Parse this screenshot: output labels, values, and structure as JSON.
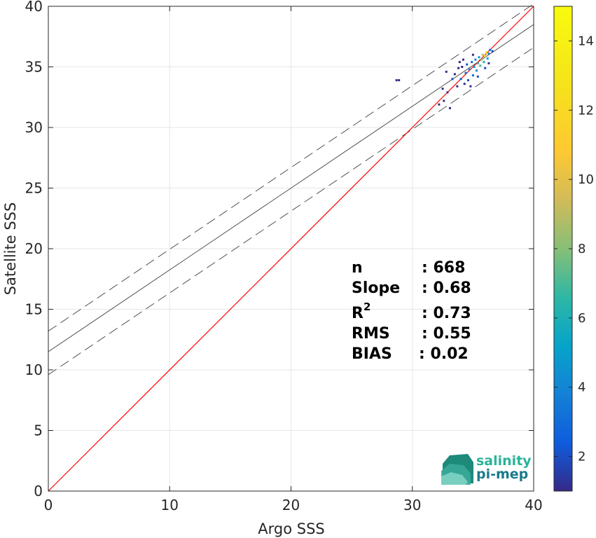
{
  "chart_data": {
    "type": "scatter",
    "xlabel": "Argo SSS",
    "ylabel": "Satellite SSS",
    "xlim": [
      0,
      40
    ],
    "ylim": [
      0,
      40
    ],
    "xticks": [
      "0",
      "10",
      "20",
      "30",
      "40"
    ],
    "yticks": [
      "0",
      "5",
      "10",
      "15",
      "20",
      "25",
      "30",
      "35",
      "40"
    ],
    "grid": true,
    "one_to_one_line": {
      "x": [
        0,
        40
      ],
      "y": [
        0,
        40
      ],
      "color": "#ff0000"
    },
    "regression_line": {
      "x": [
        0,
        40
      ],
      "y": [
        11.5,
        38.5
      ],
      "color": "#404040"
    },
    "upper_bound": {
      "x": [
        0,
        40
      ],
      "y": [
        13.2,
        40.2
      ],
      "style": "dashed"
    },
    "lower_bound": {
      "x": [
        0,
        40
      ],
      "y": [
        9.6,
        36.6
      ],
      "style": "dashed"
    },
    "density_points": [
      {
        "x": 28.7,
        "y": 33.9,
        "v": 1
      },
      {
        "x": 28.9,
        "y": 33.9,
        "v": 1
      },
      {
        "x": 32.2,
        "y": 31.9,
        "v": 1
      },
      {
        "x": 32.5,
        "y": 33.2,
        "v": 1
      },
      {
        "x": 32.9,
        "y": 32.9,
        "v": 1
      },
      {
        "x": 32.8,
        "y": 34.6,
        "v": 1
      },
      {
        "x": 33.1,
        "y": 31.6,
        "v": 1
      },
      {
        "x": 32.6,
        "y": 32.2,
        "v": 1
      },
      {
        "x": 33.3,
        "y": 34.0,
        "v": 2
      },
      {
        "x": 33.5,
        "y": 34.4,
        "v": 1
      },
      {
        "x": 33.8,
        "y": 34.9,
        "v": 1
      },
      {
        "x": 33.7,
        "y": 33.4,
        "v": 1
      },
      {
        "x": 34.0,
        "y": 34.0,
        "v": 2
      },
      {
        "x": 34.1,
        "y": 35.0,
        "v": 1
      },
      {
        "x": 34.3,
        "y": 33.6,
        "v": 1
      },
      {
        "x": 34.4,
        "y": 34.5,
        "v": 3
      },
      {
        "x": 34.5,
        "y": 35.2,
        "v": 2
      },
      {
        "x": 34.6,
        "y": 33.9,
        "v": 2
      },
      {
        "x": 34.7,
        "y": 34.8,
        "v": 4
      },
      {
        "x": 34.9,
        "y": 35.4,
        "v": 3
      },
      {
        "x": 35.0,
        "y": 34.3,
        "v": 3
      },
      {
        "x": 35.1,
        "y": 35.0,
        "v": 5
      },
      {
        "x": 35.2,
        "y": 35.6,
        "v": 4
      },
      {
        "x": 35.3,
        "y": 34.7,
        "v": 4
      },
      {
        "x": 35.4,
        "y": 35.3,
        "v": 6
      },
      {
        "x": 35.5,
        "y": 35.8,
        "v": 5
      },
      {
        "x": 35.6,
        "y": 35.1,
        "v": 7
      },
      {
        "x": 35.7,
        "y": 35.6,
        "v": 8
      },
      {
        "x": 35.8,
        "y": 36.0,
        "v": 9
      },
      {
        "x": 35.9,
        "y": 35.4,
        "v": 6
      },
      {
        "x": 36.0,
        "y": 35.9,
        "v": 12
      },
      {
        "x": 36.1,
        "y": 36.2,
        "v": 13
      },
      {
        "x": 36.2,
        "y": 35.7,
        "v": 5
      },
      {
        "x": 36.3,
        "y": 36.1,
        "v": 4
      },
      {
        "x": 36.4,
        "y": 36.4,
        "v": 3
      },
      {
        "x": 36.6,
        "y": 36.3,
        "v": 2
      },
      {
        "x": 36.0,
        "y": 34.9,
        "v": 2
      },
      {
        "x": 35.4,
        "y": 34.2,
        "v": 2
      },
      {
        "x": 34.8,
        "y": 33.4,
        "v": 1
      },
      {
        "x": 36.3,
        "y": 35.3,
        "v": 1
      },
      {
        "x": 34.2,
        "y": 35.6,
        "v": 1
      },
      {
        "x": 33.9,
        "y": 35.4,
        "v": 1
      },
      {
        "x": 35.0,
        "y": 36.0,
        "v": 1
      }
    ],
    "colorbar": {
      "min": 1,
      "max": 15,
      "ticks": [
        "2",
        "4",
        "6",
        "8",
        "10",
        "12",
        "14"
      ],
      "colormap": "parula"
    },
    "stats": [
      {
        "label": "n",
        "value": ": 668"
      },
      {
        "label": "Slope",
        "value": ": 0.68"
      },
      {
        "label": "R",
        "sup": "2",
        "value": ": 0.73"
      },
      {
        "label": "RMS",
        "value": ": 0.55"
      },
      {
        "label": "BIAS",
        "value": ": 0.02"
      }
    ]
  },
  "logo": {
    "line1": "salinity",
    "line2": "pi-mep",
    "color1": "#2bb39a",
    "color2": "#1a7a8a"
  }
}
